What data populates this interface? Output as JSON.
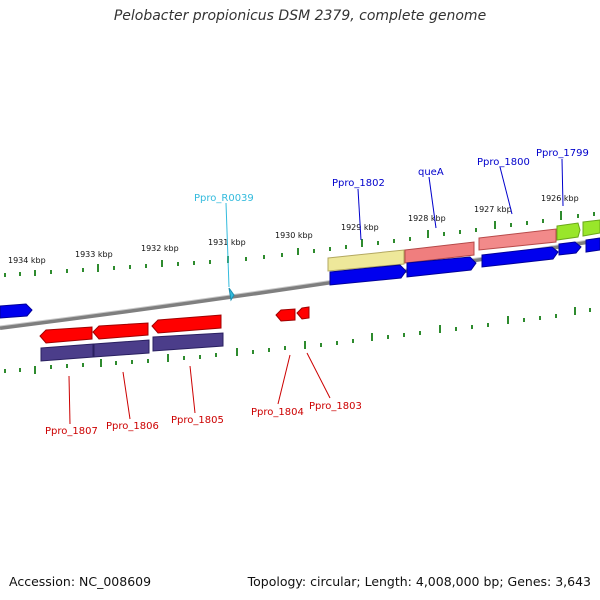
{
  "header": {
    "title": "Pelobacter propionicus DSM 2379, complete genome"
  },
  "footer": {
    "accession": "Accession: NC_008609",
    "summary": "Topology: circular; Length: 4,008,000 bp; Genes: 3,643"
  },
  "colors": {
    "backbone": "#8a8a8a",
    "tick": "#2e8b2e",
    "reverse_gene": "#ff0000",
    "reverse_cds": "#4b3d8a",
    "forward_cds": "#0000ee",
    "rna_label": "#33bbdd",
    "forward_label": "#0000cc",
    "reverse_label": "#cc0000"
  },
  "ruler": {
    "ticks": [
      {
        "label": "1934 kbp"
      },
      {
        "label": "1933 kbp"
      },
      {
        "label": "1932 kbp"
      },
      {
        "label": "1931 kbp"
      },
      {
        "label": "1930 kbp"
      },
      {
        "label": "1929 kbp"
      },
      {
        "label": "1928 kbp"
      },
      {
        "label": "1927 kbp"
      },
      {
        "label": "1926 kbp"
      }
    ]
  },
  "labels": {
    "forward": [
      {
        "text": "Ppro_R0039",
        "kind": "rna"
      },
      {
        "text": "Ppro_1802",
        "kind": "forward"
      },
      {
        "text": "queA",
        "kind": "forward"
      },
      {
        "text": "Ppro_1800",
        "kind": "forward"
      },
      {
        "text": "Ppro_1799",
        "kind": "forward"
      }
    ],
    "reverse": [
      {
        "text": "Ppro_1807"
      },
      {
        "text": "Ppro_1806"
      },
      {
        "text": "Ppro_1805"
      },
      {
        "text": "Ppro_1804"
      },
      {
        "text": "Ppro_1803"
      }
    ]
  }
}
